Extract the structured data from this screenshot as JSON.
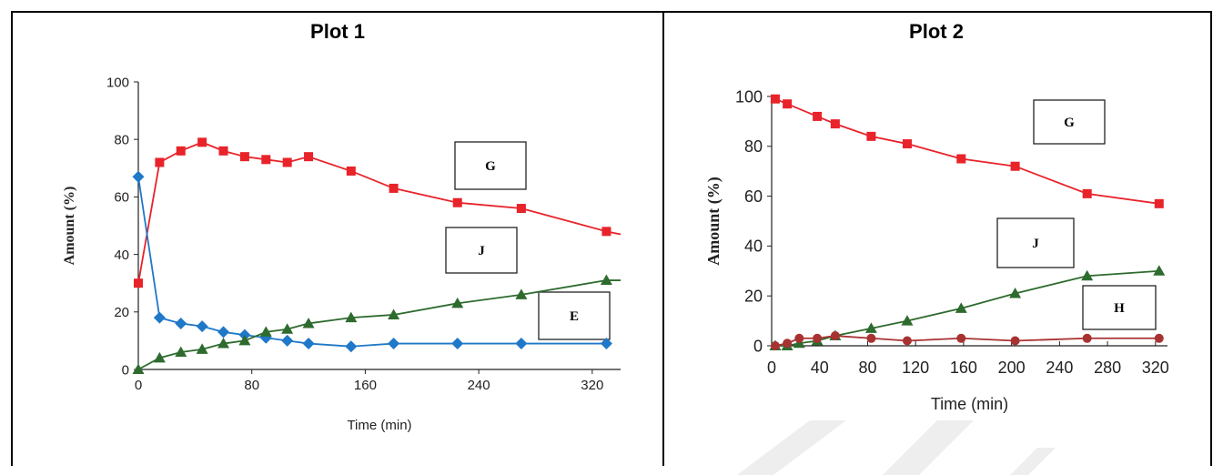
{
  "panels": [
    {
      "title": "Plot 1"
    },
    {
      "title": "Plot 2"
    }
  ],
  "chart_data": [
    {
      "type": "line",
      "title": "Plot 1",
      "xlabel": "Time (min)",
      "ylabel": "Amount (%)",
      "xlim": [
        0,
        340
      ],
      "ylim": [
        0,
        100
      ],
      "xticks": [
        0,
        80,
        160,
        240,
        320
      ],
      "yticks": [
        0,
        20,
        40,
        60,
        80,
        100
      ],
      "grid": false,
      "series": [
        {
          "name": "G",
          "color": "#e8232a",
          "marker": "square",
          "x": [
            0,
            15,
            30,
            45,
            60,
            75,
            90,
            105,
            120,
            150,
            180,
            225,
            270,
            330
          ],
          "y": [
            30,
            72,
            76,
            79,
            76,
            74,
            73,
            72,
            74,
            69,
            63,
            58,
            56,
            48
          ],
          "line_end": [
            340,
            47
          ]
        },
        {
          "name": "",
          "color": "#1f78c8",
          "marker": "diamond",
          "x": [
            0,
            15,
            30,
            45,
            60,
            75,
            90,
            105,
            120,
            150,
            180,
            225,
            270,
            330
          ],
          "y": [
            67,
            18,
            16,
            15,
            13,
            12,
            11,
            10,
            9,
            8,
            9,
            9,
            9,
            9
          ]
        },
        {
          "name": "",
          "color": "#2e6b2e",
          "marker": "triangle",
          "x": [
            0,
            15,
            30,
            45,
            60,
            75,
            90,
            105,
            120,
            150,
            180,
            225,
            270,
            330
          ],
          "y": [
            0,
            4,
            6,
            7,
            9,
            10,
            13,
            14,
            16,
            18,
            19,
            23,
            26,
            31
          ],
          "line_end": [
            340,
            31
          ]
        }
      ],
      "labels": [
        "G",
        "J",
        "E"
      ]
    },
    {
      "type": "line",
      "title": "Plot 2",
      "xlabel": "Time (min)",
      "ylabel": "Amount (%)",
      "xlim": [
        0,
        330
      ],
      "ylim": [
        0,
        100
      ],
      "xticks": [
        0,
        40,
        80,
        120,
        160,
        200,
        240,
        280,
        320
      ],
      "yticks": [
        0,
        20,
        40,
        60,
        80,
        100
      ],
      "grid": false,
      "series": [
        {
          "name": "G",
          "color": "#e8232a",
          "marker": "square",
          "x": [
            3,
            13,
            38,
            53,
            83,
            113,
            158,
            203,
            263,
            323
          ],
          "y": [
            99,
            97,
            92,
            89,
            84,
            81,
            75,
            72,
            61,
            57
          ]
        },
        {
          "name": "",
          "color": "#2e6b2e",
          "marker": "triangle",
          "x": [
            3,
            13,
            23,
            38,
            53,
            83,
            113,
            158,
            203,
            263,
            323
          ],
          "y": [
            0,
            0,
            1,
            2,
            4,
            7,
            10,
            15,
            21,
            28,
            30
          ]
        },
        {
          "name": "",
          "color": "#a83232",
          "marker": "circle",
          "x": [
            3,
            13,
            23,
            38,
            53,
            83,
            113,
            158,
            203,
            263,
            323
          ],
          "y": [
            0,
            1,
            3,
            3,
            4,
            3,
            2,
            3,
            2,
            3,
            3
          ]
        }
      ],
      "labels": [
        "G",
        "J",
        "H"
      ]
    }
  ]
}
